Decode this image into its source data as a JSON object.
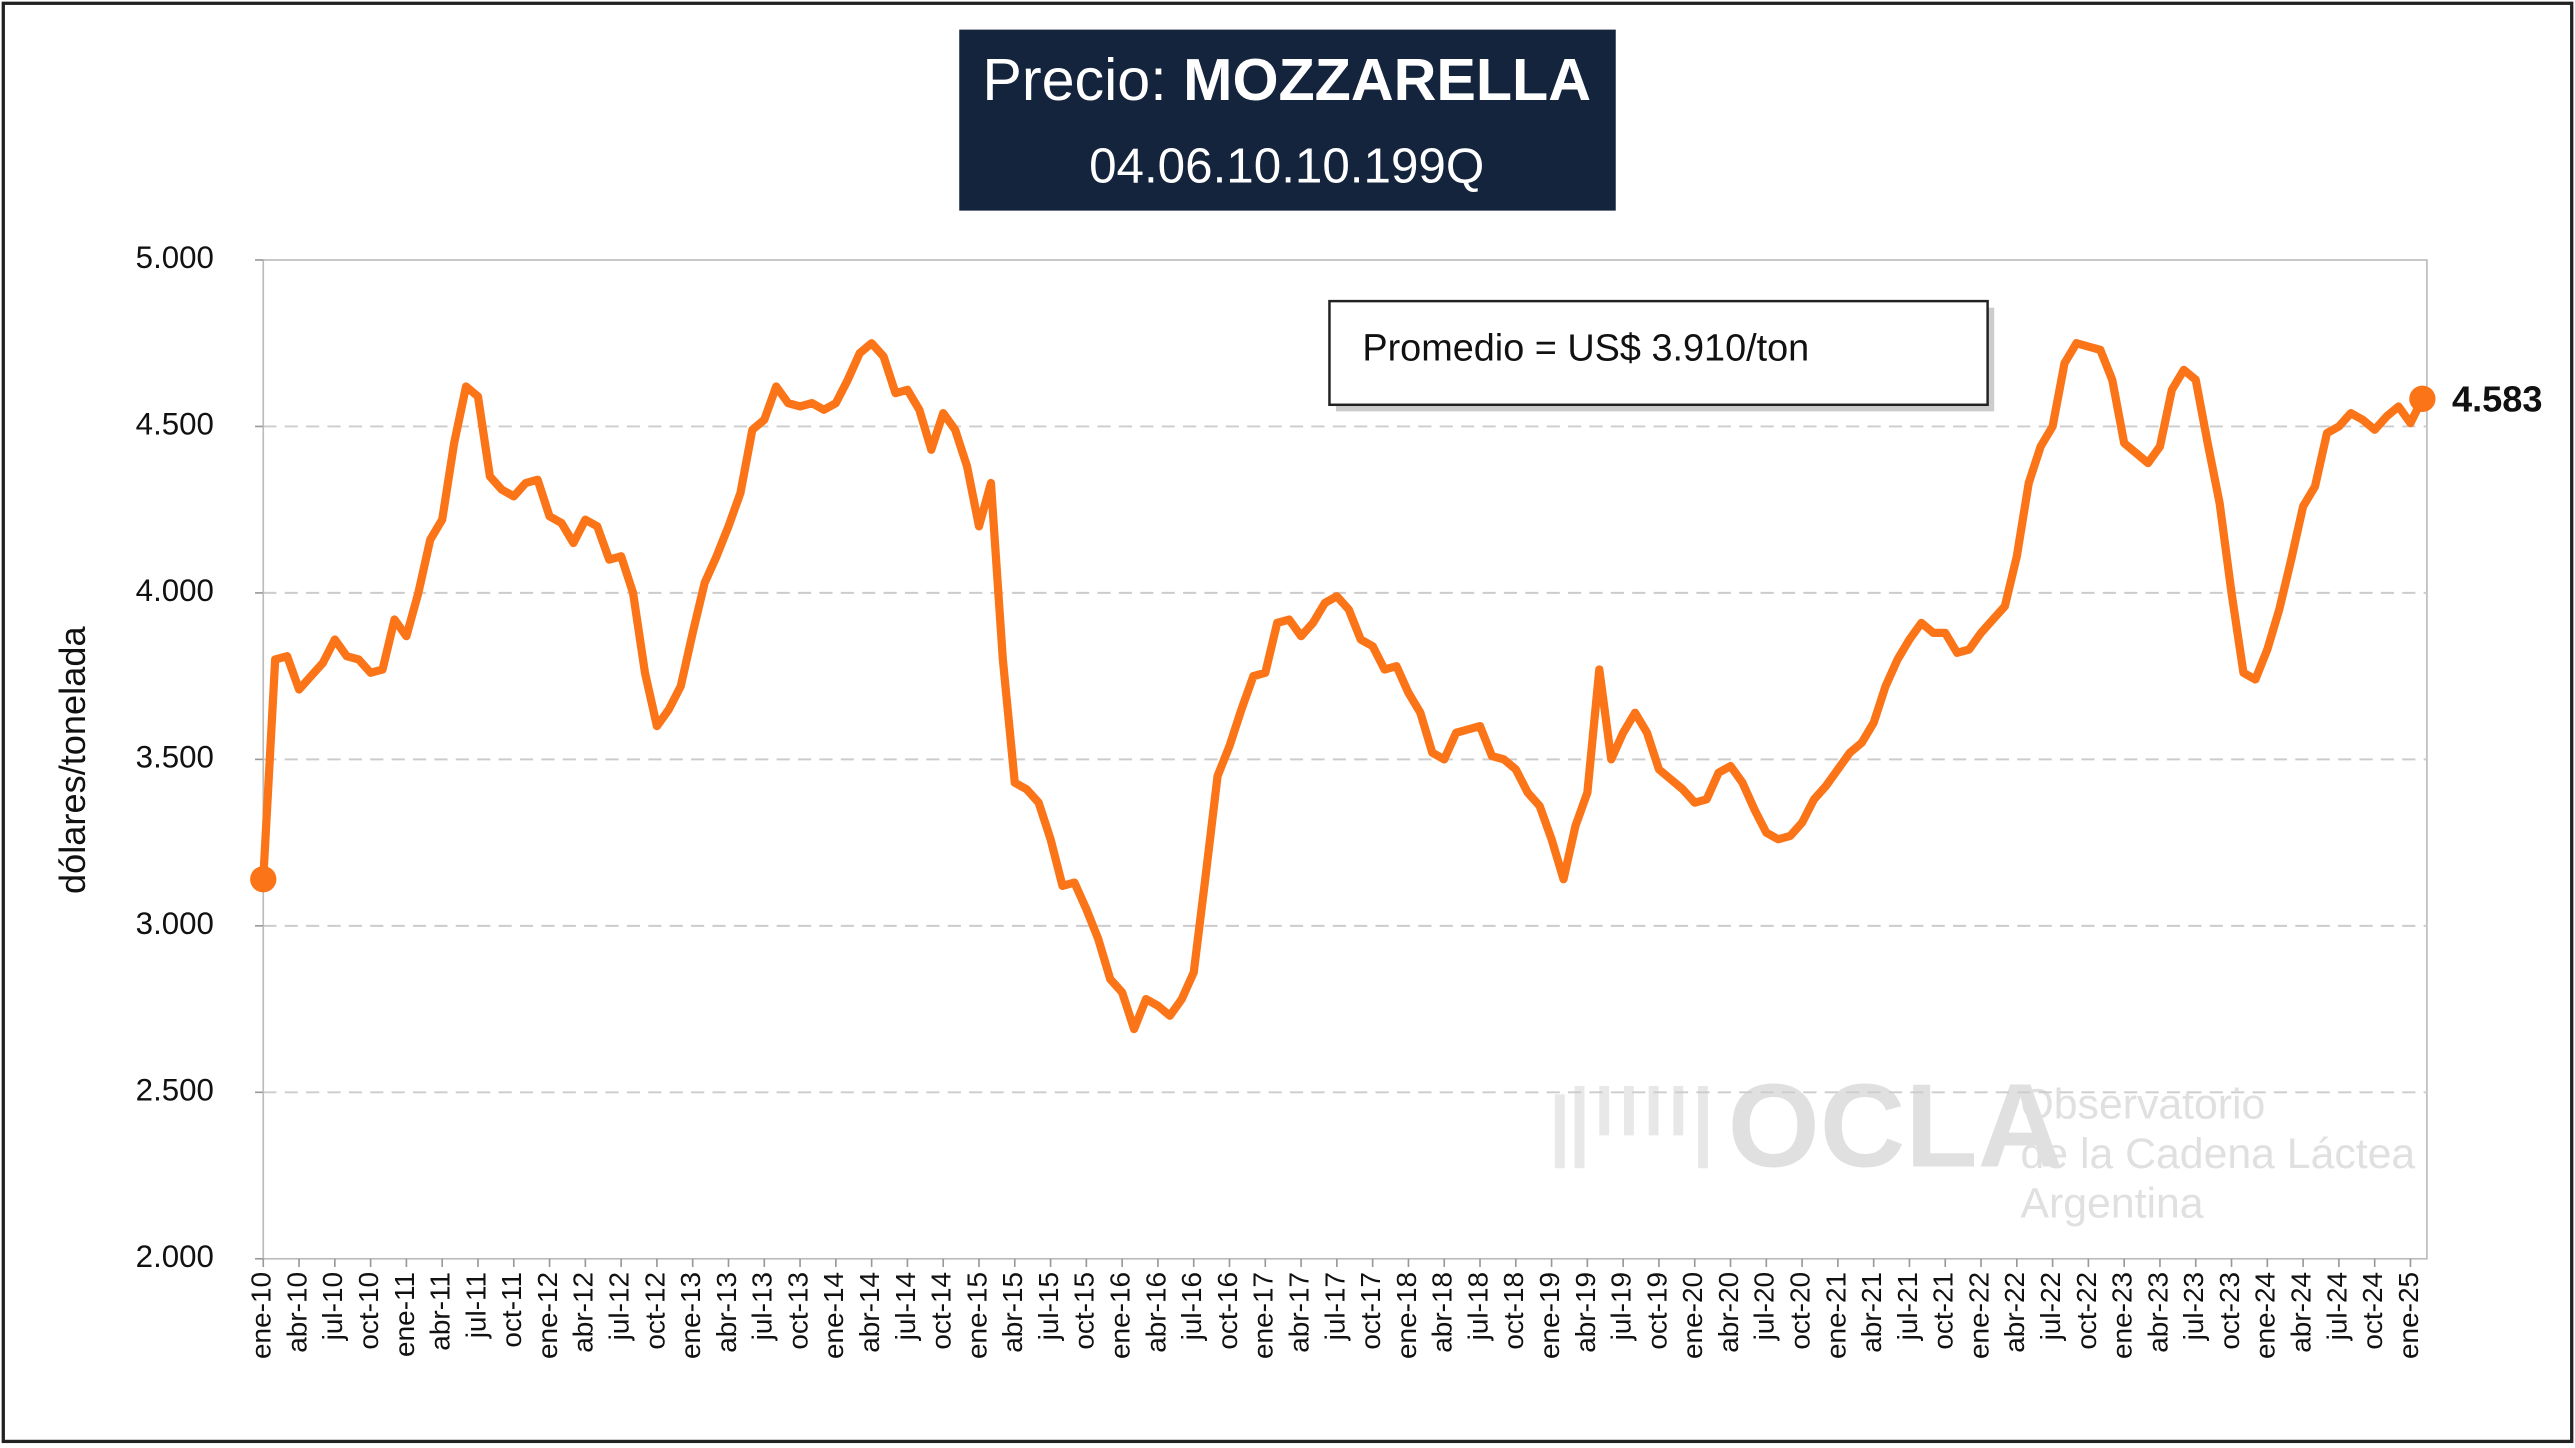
{
  "chart_data": {
    "type": "line",
    "title_prefix": "Precio:",
    "title": "MOZZARELLA",
    "subtitle": "04.06.10.10.199Q",
    "y_label": "dólares/tonelada",
    "annotation": "Promedio = US$ 3.910/ton",
    "last_value_label": "4.583",
    "watermark": {
      "logo": "OCLA",
      "lines": [
        "Observatorio",
        "de la Cadena Láctea",
        "Argentina"
      ]
    },
    "color": "#fb7417",
    "grid": true,
    "ylim": [
      2000,
      5000
    ],
    "yticks": [
      {
        "value": 2000,
        "label": "2.000"
      },
      {
        "value": 2500,
        "label": "2.500"
      },
      {
        "value": 3000,
        "label": "3.000"
      },
      {
        "value": 3500,
        "label": "3.500"
      },
      {
        "value": 4000,
        "label": "4.000"
      },
      {
        "value": 4500,
        "label": "4.500"
      },
      {
        "value": 5000,
        "label": "5.000"
      }
    ],
    "categories": [
      "ene-10",
      null,
      null,
      "abr-10",
      null,
      null,
      "jul-10",
      null,
      null,
      "oct-10",
      null,
      null,
      "ene-11",
      null,
      null,
      "abr-11",
      null,
      null,
      "jul-11",
      null,
      null,
      "oct-11",
      null,
      null,
      "ene-12",
      null,
      null,
      "abr-12",
      null,
      null,
      "jul-12",
      null,
      null,
      "oct-12",
      null,
      null,
      "ene-13",
      null,
      null,
      "abr-13",
      null,
      null,
      "jul-13",
      null,
      null,
      "oct-13",
      null,
      null,
      "ene-14",
      null,
      null,
      "abr-14",
      null,
      null,
      "jul-14",
      null,
      null,
      "oct-14",
      null,
      null,
      "ene-15",
      null,
      null,
      "abr-15",
      null,
      null,
      "jul-15",
      null,
      null,
      "oct-15",
      null,
      null,
      "ene-16",
      null,
      null,
      "abr-16",
      null,
      null,
      "jul-16",
      null,
      null,
      "oct-16",
      null,
      null,
      "ene-17",
      null,
      null,
      "abr-17",
      null,
      null,
      "jul-17",
      null,
      null,
      "oct-17",
      null,
      null,
      "ene-18",
      null,
      null,
      "abr-18",
      null,
      null,
      "jul-18",
      null,
      null,
      "oct-18",
      null,
      null,
      "ene-19",
      null,
      null,
      "abr-19",
      null,
      null,
      "jul-19",
      null,
      null,
      "oct-19",
      null,
      null,
      "ene-20",
      null,
      null,
      "abr-20",
      null,
      null,
      "jul-20",
      null,
      null,
      "oct-20",
      null,
      null,
      "ene-21",
      null,
      null,
      "abr-21",
      null,
      null,
      "jul-21",
      null,
      null,
      "oct-21",
      null,
      null,
      "ene-22",
      null,
      null,
      "abr-22",
      null,
      null,
      "jul-22",
      null,
      null,
      "oct-22",
      null,
      null,
      "ene-23",
      null,
      null,
      "abr-23",
      null,
      null,
      "jul-23",
      null,
      null,
      "oct-23",
      null,
      null,
      "ene-24",
      null,
      null,
      "abr-24",
      null,
      null,
      "jul-24",
      null,
      null,
      "oct-24",
      null,
      null,
      "ene-25",
      null
    ],
    "values": [
      3140,
      3800,
      3810,
      3710,
      3750,
      3790,
      3860,
      3810,
      3800,
      3760,
      3770,
      3920,
      3870,
      4000,
      4160,
      4220,
      4450,
      4620,
      4590,
      4350,
      4310,
      4290,
      4330,
      4340,
      4230,
      4210,
      4150,
      4220,
      4200,
      4100,
      4110,
      4000,
      3760,
      3600,
      3650,
      3720,
      3880,
      4030,
      4110,
      4200,
      4300,
      4490,
      4520,
      4620,
      4570,
      4560,
      4570,
      4550,
      4570,
      4640,
      4720,
      4750,
      4710,
      4600,
      4610,
      4550,
      4430,
      4540,
      4490,
      4380,
      4200,
      4330,
      3800,
      3430,
      3410,
      3370,
      3260,
      3120,
      3130,
      3050,
      2960,
      2840,
      2800,
      2690,
      2780,
      2760,
      2730,
      2780,
      2860,
      3150,
      3450,
      3540,
      3650,
      3750,
      3760,
      3910,
      3920,
      3870,
      3910,
      3970,
      3990,
      3950,
      3860,
      3840,
      3770,
      3780,
      3700,
      3640,
      3520,
      3500,
      3580,
      3590,
      3600,
      3510,
      3500,
      3470,
      3400,
      3360,
      3260,
      3140,
      3300,
      3400,
      3770,
      3500,
      3580,
      3640,
      3580,
      3470,
      3440,
      3410,
      3370,
      3380,
      3460,
      3480,
      3430,
      3350,
      3280,
      3260,
      3270,
      3310,
      3380,
      3420,
      3470,
      3520,
      3550,
      3610,
      3720,
      3800,
      3860,
      3910,
      3880,
      3880,
      3820,
      3830,
      3880,
      3920,
      3960,
      4110,
      4330,
      4440,
      4500,
      4690,
      4750,
      4740,
      4730,
      4640,
      4450,
      4420,
      4390,
      4440,
      4610,
      4670,
      4640,
      4450,
      4270,
      4000,
      3760,
      3740,
      3830,
      3950,
      4100,
      4260,
      4320,
      4480,
      4500,
      4540,
      4520,
      4490,
      4530,
      4560,
      4510,
      4583
    ]
  }
}
